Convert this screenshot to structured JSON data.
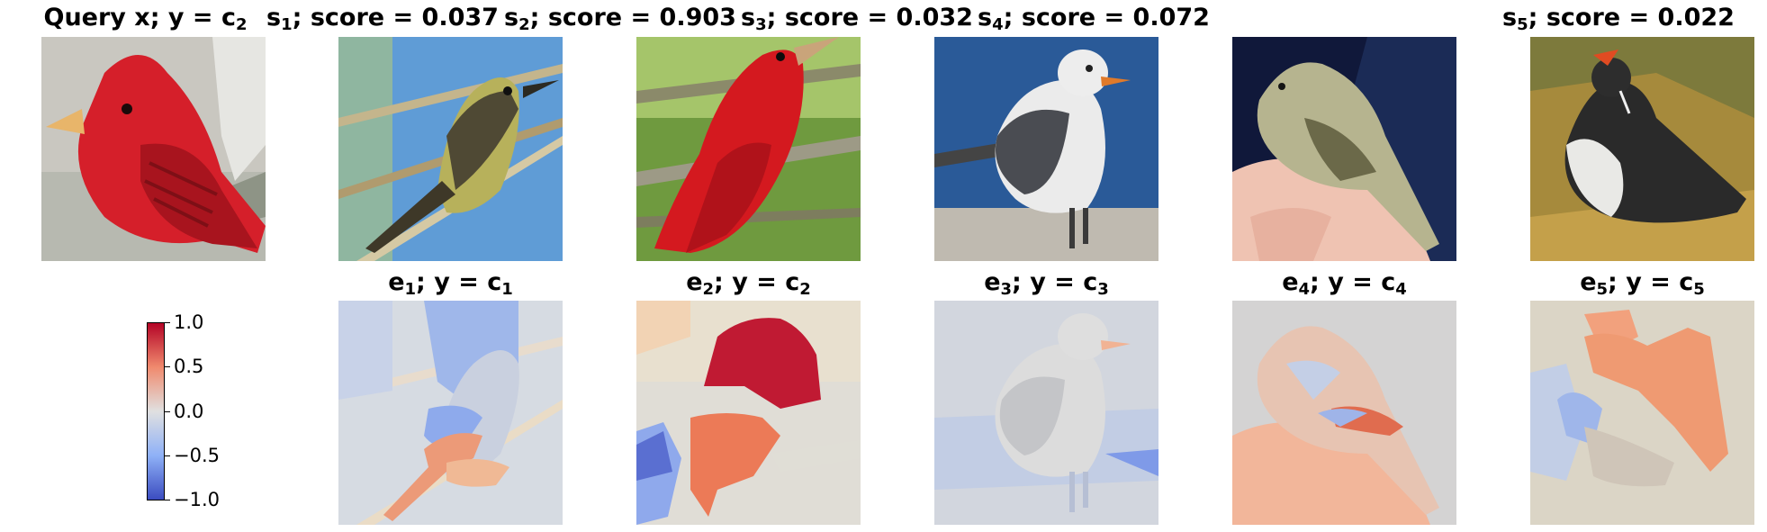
{
  "query": {
    "title_main": "Query x; y = c",
    "title_sub": "2",
    "bird": "red-bird"
  },
  "similar": [
    {
      "sym": "s",
      "idx": "1",
      "rest": "; score = 0.037",
      "score": 0.037,
      "bird": "flycatcher"
    },
    {
      "sym": "s",
      "idx": "2",
      "rest": "; score = 0.903",
      "score": 0.903,
      "bird": "red-bird"
    },
    {
      "sym": "s",
      "idx": "3",
      "rest": "; score = 0.032",
      "score": 0.032,
      "bird": "gull"
    },
    {
      "sym": "s",
      "idx": "4",
      "rest": "; score = 0.072",
      "score": 0.072,
      "bird": "small-bird-in-hand"
    },
    {
      "sym": "s",
      "idx": "5",
      "rest": "; score = 0.022",
      "score": 0.022,
      "bird": "puffin"
    }
  ],
  "explanations": [
    {
      "sym": "e",
      "idx": "1",
      "rest": "; y = c",
      "cls": "1",
      "bird": "flycatcher"
    },
    {
      "sym": "e",
      "idx": "2",
      "rest": "; y = c",
      "cls": "2",
      "bird": "red-bird"
    },
    {
      "sym": "e",
      "idx": "3",
      "rest": "; y = c",
      "cls": "3",
      "bird": "gull"
    },
    {
      "sym": "e",
      "idx": "4",
      "rest": "; y = c",
      "cls": "4",
      "bird": "small-bird-in-hand"
    },
    {
      "sym": "e",
      "idx": "5",
      "rest": "; y = c",
      "cls": "5",
      "bird": "puffin"
    }
  ],
  "colorbar": {
    "ticks": [
      "1.0",
      "0.5",
      "0.0",
      "−0.5",
      "−1.0"
    ],
    "colormap": [
      "#b40426",
      "#f08a6e",
      "#e0e0e0",
      "#8fb1f7",
      "#3b4cc0"
    ]
  }
}
